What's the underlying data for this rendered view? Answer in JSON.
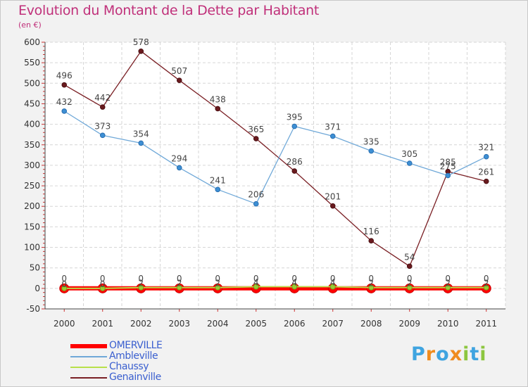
{
  "title": "Evolution du Montant de la Dette par Habitant",
  "subtitle": "(en €)",
  "logo": {
    "text": "Proxiti",
    "letters": [
      {
        "ch": "P",
        "color": "#3fa4e0"
      },
      {
        "ch": "r",
        "color": "#f08c1e"
      },
      {
        "ch": "o",
        "color": "#3fa4e0"
      },
      {
        "ch": "x",
        "color": "#f08c1e"
      },
      {
        "ch": "i",
        "color": "#8cc63f"
      },
      {
        "ch": "t",
        "color": "#3fa4e0"
      },
      {
        "ch": "i",
        "color": "#8cc63f"
      }
    ]
  },
  "chart_data": {
    "type": "line",
    "x": [
      "2000",
      "2001",
      "2002",
      "2003",
      "2004",
      "2005",
      "2006",
      "2007",
      "2008",
      "2009",
      "2010",
      "2011"
    ],
    "ylim": [
      -50,
      600
    ],
    "yticks": [
      -50,
      0,
      50,
      100,
      150,
      200,
      250,
      300,
      350,
      400,
      450,
      500,
      550,
      600
    ],
    "grid": true,
    "legend_position": "bottom-left",
    "series": [
      {
        "name": "OMERVILLE",
        "color": "#ff0000",
        "values": [
          0,
          0,
          0,
          0,
          0,
          0,
          0,
          0,
          0,
          0,
          0,
          0
        ],
        "labels": [
          "0",
          "0",
          "0",
          "0",
          "0",
          "0",
          "0",
          "0",
          "0",
          "0",
          "0",
          "0"
        ]
      },
      {
        "name": "Ambleville",
        "color": "#6fa8d8",
        "values": [
          432,
          373,
          354,
          294,
          241,
          206,
          395,
          371,
          335,
          305,
          275,
          321
        ],
        "labels": [
          "432",
          "373",
          "354",
          "294",
          "241",
          "206",
          "395",
          "371",
          "335",
          "305",
          "275",
          "321"
        ]
      },
      {
        "name": "Chaussy",
        "color": "#b8e04a",
        "values": [
          0,
          0,
          2,
          2,
          2,
          4,
          4,
          4,
          2,
          2,
          2,
          2
        ],
        "labels": [
          "0",
          "0",
          "2",
          "2",
          "2",
          "4",
          "4",
          "4",
          "2",
          "2",
          "2",
          "2"
        ]
      },
      {
        "name": "Genainville",
        "color": "#7a1f24",
        "values": [
          496,
          442,
          578,
          507,
          438,
          365,
          286,
          201,
          116,
          54,
          285,
          261
        ],
        "labels": [
          "496",
          "442",
          "578",
          "507",
          "438",
          "365",
          "286",
          "201",
          "116",
          "54",
          "285",
          "261"
        ]
      }
    ]
  }
}
